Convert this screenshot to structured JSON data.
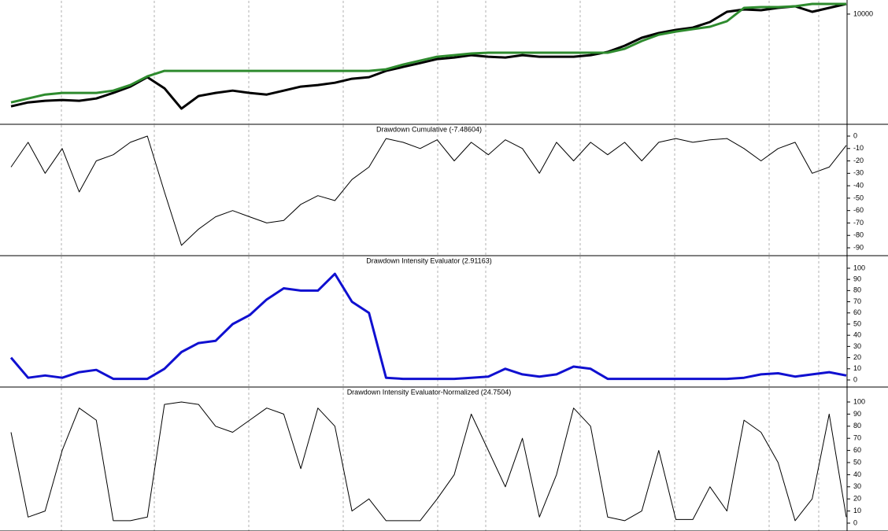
{
  "chart_data": [
    {
      "type": "line",
      "log": true,
      "ylim": [
        4400,
        11000
      ],
      "yticks": [
        10000
      ],
      "series": [
        {
          "color": "#000000",
          "values": [
            4955,
            5106,
            5168,
            5199,
            5168,
            5260,
            5487,
            5757,
            6186,
            5687,
            4868,
            5357,
            5487,
            5585,
            5487,
            5420,
            5585,
            5757,
            5826,
            5930,
            6113,
            6186,
            6490,
            6687,
            6888,
            7098,
            7184,
            7318,
            7227,
            7184,
            7318,
            7227,
            7227,
            7227,
            7318,
            7497,
            7863,
            8349,
            8655,
            8865,
            9024,
            9413,
            10175,
            10360,
            10298,
            10484,
            10612,
            10175,
            10484,
            10802
          ]
        },
        {
          "color": "#2e8b2e",
          "values": [
            5106,
            5260,
            5420,
            5487,
            5487,
            5487,
            5585,
            5826,
            6224,
            6490,
            6490,
            6490,
            6490,
            6490,
            6490,
            6490,
            6490,
            6490,
            6490,
            6490,
            6490,
            6490,
            6568,
            6809,
            7014,
            7227,
            7318,
            7407,
            7451,
            7451,
            7451,
            7451,
            7451,
            7451,
            7451,
            7451,
            7678,
            8151,
            8551,
            8758,
            8918,
            9079,
            9469,
            10484,
            10548,
            10548,
            10612,
            10802,
            10802,
            10802
          ]
        }
      ]
    },
    {
      "type": "line",
      "title": "Drawdown Cumulative (-7.48604)",
      "ylim": [
        -95,
        5
      ],
      "yticks": [
        0,
        -10,
        -20,
        -30,
        -40,
        -50,
        -60,
        -70,
        -80,
        -90
      ],
      "series": [
        {
          "color": "#000000",
          "values": [
            -25,
            -5,
            -30,
            -10,
            -45,
            -20,
            -15,
            -5,
            0,
            -45,
            -88,
            -75,
            -65,
            -60,
            -65,
            -70,
            -68,
            -55,
            -48,
            -52,
            -35,
            -25,
            -2,
            -5,
            -10,
            -3,
            -20,
            -5,
            -15,
            -3,
            -10,
            -30,
            -5,
            -20,
            -5,
            -15,
            -5,
            -20,
            -5,
            -2,
            -5,
            -3,
            -2,
            -10,
            -20,
            -10,
            -5,
            -30,
            -25,
            -7.5
          ]
        }
      ]
    },
    {
      "type": "line",
      "title": "Drawdown Intensity Evaluator (2.91163)",
      "ylim": [
        -5,
        108
      ],
      "yticks": [
        0,
        10,
        20,
        30,
        40,
        50,
        60,
        70,
        80,
        90,
        100
      ],
      "series": [
        {
          "color": "#1010d0",
          "values": [
            20,
            2,
            4,
            2,
            7,
            9,
            1,
            1,
            1,
            10,
            25,
            33,
            35,
            50,
            58,
            72,
            82,
            80,
            80,
            95,
            70,
            60,
            2,
            1,
            1,
            1,
            1,
            2,
            3,
            10,
            5,
            3,
            5,
            12,
            10,
            1,
            1,
            1,
            1,
            1,
            1,
            1,
            1,
            2,
            5,
            6,
            3,
            5,
            7,
            4
          ]
        }
      ]
    },
    {
      "type": "line",
      "title": "Drawdown Intensity Evaluator-Normalized (24.7504)",
      "ylim": [
        -5,
        110
      ],
      "yticks": [
        0,
        10,
        20,
        30,
        40,
        50,
        60,
        70,
        80,
        90,
        100
      ],
      "series": [
        {
          "color": "#000000",
          "values": [
            75,
            5,
            10,
            60,
            95,
            85,
            2,
            2,
            5,
            98,
            100,
            98,
            80,
            75,
            85,
            95,
            90,
            45,
            95,
            80,
            10,
            20,
            2,
            2,
            2,
            20,
            40,
            90,
            60,
            30,
            70,
            5,
            40,
            95,
            80,
            5,
            2,
            10,
            60,
            3,
            3,
            30,
            10,
            85,
            75,
            50,
            2,
            20,
            90,
            5
          ]
        }
      ]
    }
  ]
}
